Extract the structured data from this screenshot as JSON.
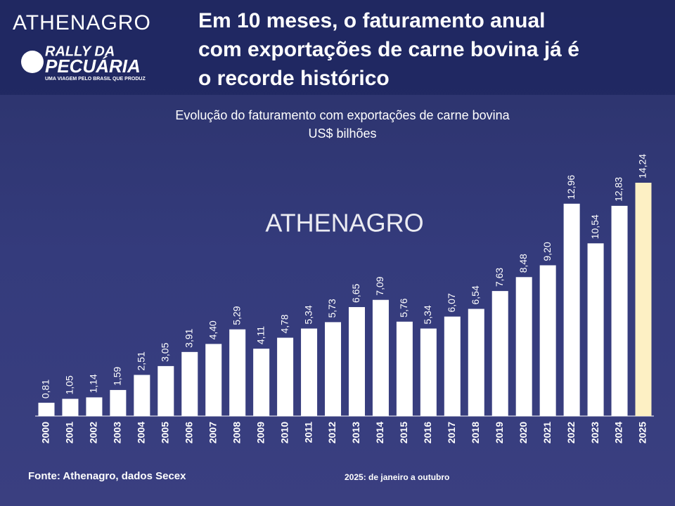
{
  "logo": "ATHENAGRO",
  "rally_logo": {
    "line1": "RALLY DA",
    "line2": "PECUÁRIA",
    "tagline": "UMA VIAGEM PELO BRASIL QUE PRODUZ"
  },
  "headline": [
    "Em 10 meses, o faturamento anual",
    "com exportações de carne bovina já é",
    "o recorde histórico"
  ],
  "watermark": "ATHENAGRO",
  "chart_data": {
    "type": "bar",
    "title": "Evolução do faturamento com exportações de carne bovina",
    "subtitle": "US$ bilhões",
    "categories": [
      "2000",
      "2001",
      "2002",
      "2003",
      "2004",
      "2005",
      "2006",
      "2007",
      "2008",
      "2009",
      "2010",
      "2011",
      "2012",
      "2013",
      "2014",
      "2015",
      "2016",
      "2017",
      "2018",
      "2019",
      "2020",
      "2021",
      "2022",
      "2023",
      "2024",
      "2025"
    ],
    "values": [
      0.81,
      1.05,
      1.14,
      1.59,
      2.51,
      3.05,
      3.91,
      4.4,
      5.29,
      4.11,
      4.78,
      5.34,
      5.73,
      6.65,
      7.09,
      5.76,
      5.34,
      6.07,
      6.54,
      7.63,
      8.48,
      9.2,
      12.96,
      10.54,
      12.83,
      14.24
    ],
    "value_labels": [
      "0,81",
      "1,05",
      "1,14",
      "1,59",
      "2,51",
      "3,05",
      "3,91",
      "4,40",
      "5,29",
      "4,11",
      "4,78",
      "5,34",
      "5,73",
      "6,65",
      "7,09",
      "5,76",
      "5,34",
      "6,07",
      "6,54",
      "7,63",
      "8,48",
      "9,20",
      "12,96",
      "10,54",
      "12,83",
      "14,24"
    ],
    "colors": [
      "#ffffff",
      "#ffffff",
      "#ffffff",
      "#ffffff",
      "#ffffff",
      "#ffffff",
      "#ffffff",
      "#ffffff",
      "#ffffff",
      "#ffffff",
      "#ffffff",
      "#ffffff",
      "#ffffff",
      "#ffffff",
      "#ffffff",
      "#ffffff",
      "#ffffff",
      "#ffffff",
      "#ffffff",
      "#ffffff",
      "#ffffff",
      "#ffffff",
      "#ffffff",
      "#ffffff",
      "#ffffff",
      "#fdf0c4"
    ],
    "source": "Fonte: Athenagro, dados Secex",
    "note": "2025: de janeiro a outubro"
  }
}
